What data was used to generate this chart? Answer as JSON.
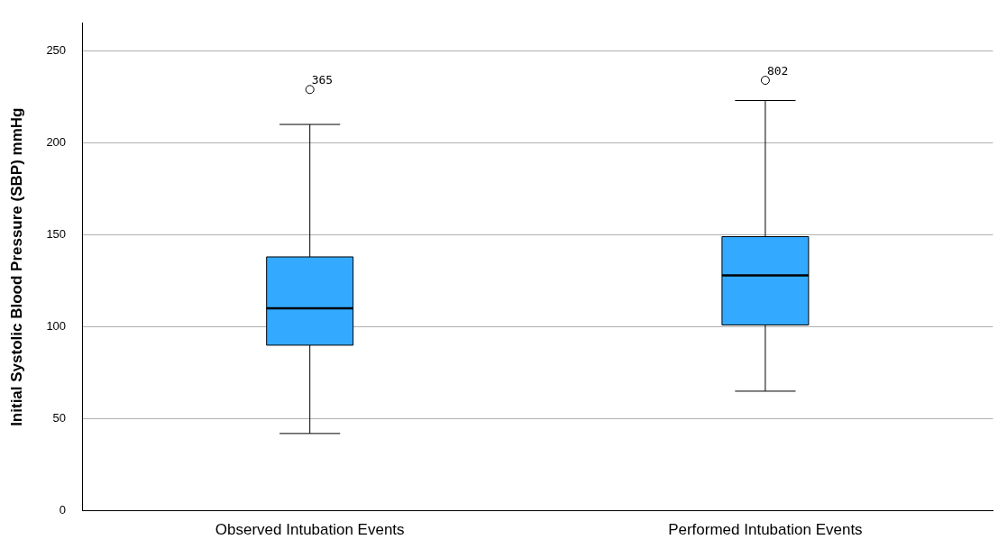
{
  "chart_data": {
    "type": "box",
    "ylabel": "Initial Systolic Blood Pressure (SBP) mmHg",
    "categories": [
      "Observed Intubation Events",
      "Performed Intubation Events"
    ],
    "boxes": [
      {
        "low": 42,
        "q1": 90,
        "median": 110,
        "q3": 138,
        "high": 210,
        "outliers": [
          229
        ]
      },
      {
        "low": 65,
        "q1": 101,
        "median": 128,
        "q3": 149,
        "high": 223,
        "outliers": [
          234
        ]
      }
    ],
    "color": "#33aaff",
    "ylim": [
      0,
      265
    ],
    "yticks": [
      0,
      50,
      100,
      150,
      200,
      250
    ],
    "grid": "y",
    "annotations": [
      "365",
      "802"
    ]
  }
}
